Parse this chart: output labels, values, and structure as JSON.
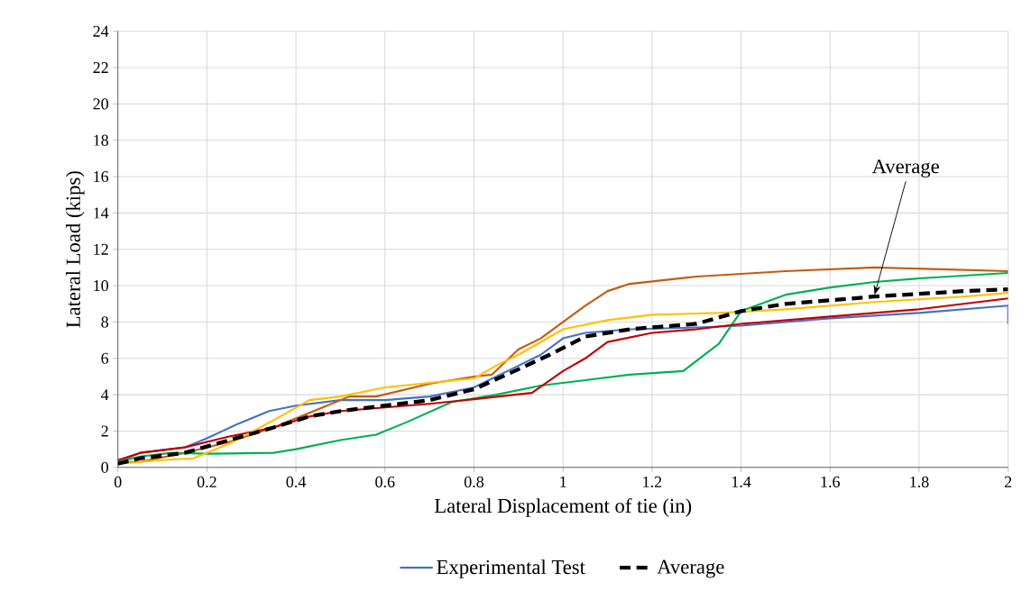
{
  "chart_data": {
    "type": "line",
    "xlabel": "Lateral Displacement of tie (in)",
    "ylabel": "Lateral Load (kips)",
    "xlim": [
      0,
      2
    ],
    "ylim": [
      0,
      24
    ],
    "xticks": [
      0,
      0.2,
      0.4,
      0.6,
      0.8,
      1,
      1.2,
      1.4,
      1.6,
      1.8,
      2
    ],
    "yticks": [
      0,
      2,
      4,
      6,
      8,
      10,
      12,
      14,
      16,
      18,
      20,
      22,
      24
    ],
    "grid": true,
    "legend": "bottom",
    "marker": "none",
    "annotations": [
      {
        "text": "Average",
        "x": 1.7,
        "y": 9.5
      }
    ],
    "series": [
      {
        "name": "Experimental Test",
        "color": "#4472c4",
        "line_style": "solid",
        "x": [
          0,
          0.05,
          0.15,
          0.2,
          0.27,
          0.34,
          0.4,
          0.5,
          0.6,
          0.7,
          0.8,
          0.9,
          0.95,
          1.0,
          1.05,
          1.15,
          1.3,
          1.4,
          1.6,
          1.8,
          2.0,
          2.0
        ],
        "values": [
          0.3,
          0.8,
          1.1,
          1.6,
          2.4,
          3.1,
          3.4,
          3.7,
          3.7,
          3.9,
          4.4,
          5.6,
          6.2,
          7.1,
          7.4,
          7.6,
          7.7,
          7.8,
          8.2,
          8.5,
          8.9,
          7.9
        ]
      },
      {
        "color": "#c55a11",
        "line_style": "solid",
        "x": [
          0,
          0.05,
          0.15,
          0.25,
          0.35,
          0.45,
          0.52,
          0.58,
          0.7,
          0.8,
          0.84,
          0.9,
          0.95,
          1.0,
          1.05,
          1.1,
          1.15,
          1.3,
          1.5,
          1.7,
          1.85,
          2.0
        ],
        "values": [
          0.3,
          0.3,
          0.8,
          1.4,
          2.2,
          3.2,
          3.9,
          3.9,
          4.6,
          5.0,
          5.1,
          6.5,
          7.1,
          8.0,
          8.9,
          9.7,
          10.1,
          10.5,
          10.8,
          11.0,
          10.9,
          10.8
        ]
      },
      {
        "color": "#00b050",
        "line_style": "solid",
        "x": [
          0,
          0.05,
          0.12,
          0.2,
          0.35,
          0.4,
          0.5,
          0.58,
          0.65,
          0.75,
          0.85,
          0.95,
          1.05,
          1.15,
          1.27,
          1.35,
          1.4,
          1.5,
          1.6,
          1.7,
          1.8,
          2.0
        ],
        "values": [
          0.3,
          0.6,
          0.8,
          0.75,
          0.8,
          1.0,
          1.5,
          1.8,
          2.5,
          3.6,
          4.0,
          4.5,
          4.8,
          5.1,
          5.3,
          6.8,
          8.6,
          9.5,
          9.9,
          10.2,
          10.4,
          10.7
        ]
      },
      {
        "color": "#c00000",
        "line_style": "solid",
        "x": [
          0,
          0.05,
          0.15,
          0.25,
          0.35,
          0.43,
          0.5,
          0.6,
          0.7,
          0.8,
          0.93,
          1.0,
          1.05,
          1.1,
          1.2,
          1.3,
          1.4,
          1.6,
          1.8,
          2.0
        ],
        "values": [
          0.4,
          0.8,
          1.1,
          1.7,
          2.2,
          2.8,
          3.1,
          3.3,
          3.5,
          3.75,
          4.1,
          5.3,
          6.0,
          6.9,
          7.4,
          7.6,
          7.9,
          8.3,
          8.7,
          9.3
        ]
      },
      {
        "color": "#ffc000",
        "line_style": "solid",
        "x": [
          0,
          0.1,
          0.17,
          0.25,
          0.35,
          0.43,
          0.5,
          0.6,
          0.8,
          0.85,
          0.9,
          1.0,
          1.1,
          1.2,
          1.35,
          1.5,
          1.7,
          1.9,
          2.0
        ],
        "values": [
          0.2,
          0.4,
          0.5,
          1.3,
          2.6,
          3.7,
          3.9,
          4.4,
          4.9,
          5.6,
          6.2,
          7.6,
          8.1,
          8.4,
          8.5,
          8.7,
          9.1,
          9.4,
          9.6
        ]
      },
      {
        "name": "Average",
        "color": "#000000",
        "line_style": "dashed",
        "x": [
          0,
          0.05,
          0.15,
          0.25,
          0.35,
          0.43,
          0.5,
          0.6,
          0.7,
          0.8,
          0.9,
          0.97,
          1.05,
          1.15,
          1.3,
          1.4,
          1.5,
          1.7,
          1.9,
          2.0
        ],
        "values": [
          0.2,
          0.5,
          0.8,
          1.5,
          2.2,
          2.8,
          3.1,
          3.4,
          3.7,
          4.3,
          5.4,
          6.2,
          7.2,
          7.6,
          7.9,
          8.6,
          9.0,
          9.4,
          9.7,
          9.8
        ]
      }
    ]
  }
}
